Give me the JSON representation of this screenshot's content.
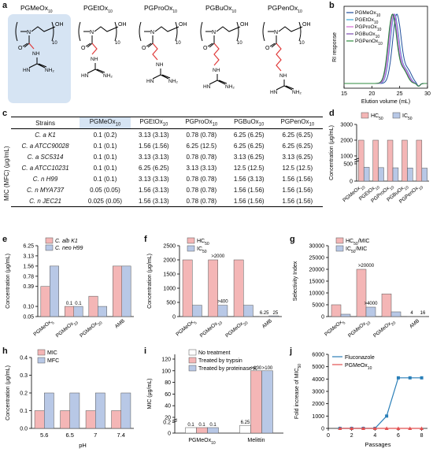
{
  "panel_letters": {
    "a": "a",
    "b": "b",
    "c": "c",
    "d": "d",
    "e": "e",
    "f": "f",
    "g": "g",
    "h": "h",
    "i": "i",
    "j": "j"
  },
  "molecules": {
    "names": [
      "PGMeOx",
      "PGEtOx",
      "PGProOx",
      "PGBuOx",
      "PGPenOx"
    ],
    "subscript": "10",
    "repeat": "10",
    "atoms": {
      "N": "N",
      "O": "O",
      "H": "H",
      "OH": "OH",
      "NH": "NH",
      "NH2": "NH₂",
      "HN": "HN"
    }
  },
  "table_c": {
    "side_label": "MIC (MFC) (μg/mL)",
    "header_first": "Strains",
    "header_prefixes": [
      "PGMeOx",
      "PGEtOx",
      "PGProOx",
      "PGBuOx",
      "PGPenOx"
    ],
    "header_sub": "10",
    "rows": [
      {
        "strain": "C. a K1",
        "values": [
          "0.1 (0.2)",
          "3.13 (3.13)",
          "0.78 (0.78)",
          "6.25 (6.25)",
          "6.25 (6.25)"
        ]
      },
      {
        "strain": "C. a ATCC90028",
        "values": [
          "0.1 (0.1)",
          "1.56 (1.56)",
          "6.25 (12.5)",
          "6.25 (6.25)",
          "6.25 (6.25)"
        ]
      },
      {
        "strain": "C. a SC5314",
        "values": [
          "0.1 (0.1)",
          "3.13 (3.13)",
          "0.78 (0.78)",
          "3.13 (6.25)",
          "3.13 (6.25)"
        ]
      },
      {
        "strain": "C. a ATCC10231",
        "values": [
          "0.1 (0.1)",
          "6.25 (6.25)",
          "3.13 (3.13)",
          "12.5 (12.5)",
          "12.5 (12.5)"
        ]
      },
      {
        "strain": "C. n H99",
        "values": [
          "0.1 (0.1)",
          "3.13 (3.13)",
          "0.78 (0.78)",
          "1.56 (3.13)",
          "1.56 (1.56)"
        ]
      },
      {
        "strain": "C. n MYA737",
        "values": [
          "0.05 (0.05)",
          "1.56 (3.13)",
          "0.78 (0.78)",
          "1.56 (1.56)",
          "1.56 (1.56)"
        ]
      },
      {
        "strain": "C. n JEC21",
        "values": [
          "0.025 (0.05)",
          "1.56 (3.13)",
          "0.78 (0.78)",
          "1.56 (1.56)",
          "1.56 (1.56)"
        ]
      }
    ]
  },
  "chart_data": [
    {
      "panel": "b",
      "type": "line",
      "xlabel": "Elution volume (mL)",
      "ylabel": "RI response",
      "xlim": [
        15,
        30
      ],
      "xticks": [
        "15",
        "20",
        "25",
        "30"
      ],
      "legend_prefixes": [
        "PGMeOx",
        "PGEtOx",
        "PGProOx",
        "PGBuOx",
        "PGPenOx"
      ],
      "legend_sub": "10",
      "legend_location": "upper-left",
      "colors": [
        "#1f4e9b",
        "#3aa6d8",
        "#d46ad4",
        "#7b4bb0",
        "#2e8b3e"
      ],
      "peak_x": [
        24.5,
        24.1,
        24.0,
        23.8,
        23.7
      ]
    },
    {
      "panel": "d",
      "type": "bar",
      "ylabel": "Concentration (μg/mL)",
      "yticks": [
        "0",
        "500",
        "1000",
        "2000",
        "3000"
      ],
      "categories_prefix": [
        "PGMeOx",
        "PGEtOx",
        "PGProOx",
        "PGBuOx",
        "PGPenOx"
      ],
      "categories_sub": "10",
      "series": [
        {
          "name": "HC",
          "name_sub": "50",
          "color": "#f4b6b6",
          "values": [
            2000,
            2000,
            2000,
            2000,
            2000
          ]
        },
        {
          "name": "IC",
          "name_sub": "50",
          "color": "#b8c8e6",
          "values": [
            400,
            390,
            385,
            380,
            375
          ]
        }
      ]
    },
    {
      "panel": "e",
      "type": "bar",
      "ylabel": "Concentration (μg/mL)",
      "yticks": [
        "0.05",
        "0.10",
        "0.39",
        "0.78",
        "1.56",
        "3.13",
        "6.25"
      ],
      "categories_prefix": [
        "PGMeOx",
        "PGMeOx",
        "PGMeOx",
        "AMB"
      ],
      "categories_sub": [
        "5",
        "10",
        "20",
        ""
      ],
      "series": [
        {
          "name": "C. alb K1",
          "color": "#f4b6b6",
          "values": [
            0.39,
            0.1,
            0.2,
            1.56
          ]
        },
        {
          "name": "C. neo H99",
          "color": "#b8c8e6",
          "values": [
            1.56,
            0.1,
            0.1,
            1.56
          ]
        }
      ],
      "data_labels": [
        "0.1",
        "0.1"
      ]
    },
    {
      "panel": "f",
      "type": "bar",
      "ylabel": "Concentration (μg/mL)",
      "yticks": [
        "0",
        "500",
        "1000",
        "1500",
        "2000",
        "2500"
      ],
      "categories_prefix": [
        "PGMeOx",
        "PGMeOx",
        "PGMeOx",
        "AMB"
      ],
      "categories_sub": [
        "5",
        "10",
        "20",
        ""
      ],
      "series": [
        {
          "name": "HC",
          "name_sub": "50",
          "color": "#f4b6b6",
          "values": [
            2000,
            2000,
            2000,
            6.25
          ]
        },
        {
          "name": "IC",
          "name_sub": "50",
          "color": "#b8c8e6",
          "values": [
            400,
            400,
            400,
            25
          ]
        }
      ],
      "data_labels": [
        ">2000",
        ">400",
        "6.25",
        "25"
      ]
    },
    {
      "panel": "g",
      "type": "bar",
      "ylabel": "Selectivity Index",
      "yticks": [
        "0",
        "5000",
        "10000",
        "15000",
        "20000",
        "25000",
        "30000"
      ],
      "categories_prefix": [
        "PGMeOx",
        "PGMeOx",
        "PGMeOx",
        "AMB"
      ],
      "categories_sub": [
        "5",
        "10",
        "20",
        ""
      ],
      "series": [
        {
          "name": "HC50/MIC",
          "color": "#f4b6b6",
          "values": [
            5000,
            20000,
            9600,
            4
          ]
        },
        {
          "name": "IC50/MIC",
          "color": "#b8c8e6",
          "values": [
            1000,
            4000,
            2000,
            16
          ]
        }
      ],
      "legend_labels": [
        "HC",
        "/MIC",
        "IC",
        "/MIC"
      ],
      "legend_sub": "50",
      "data_labels": [
        ">20000",
        ">4000",
        "4",
        "16"
      ]
    },
    {
      "panel": "h",
      "type": "bar",
      "xlabel": "pH",
      "ylabel": "Concentration (μg/mL)",
      "categories": [
        "5.6",
        "6.5",
        "7",
        "7.4"
      ],
      "yticks": [
        "0.0",
        "0.1",
        "0.2",
        "0.3",
        "0.4"
      ],
      "ylim": [
        0,
        0.4
      ],
      "series": [
        {
          "name": "MIC",
          "color": "#f4b6b6",
          "values": [
            0.1,
            0.1,
            0.1,
            0.1
          ]
        },
        {
          "name": "MFC",
          "color": "#b8c8e6",
          "values": [
            0.2,
            0.2,
            0.2,
            0.2
          ]
        }
      ]
    },
    {
      "panel": "i",
      "type": "bar",
      "ylabel": "MIC (μg/mL)",
      "yticks": [
        "0",
        "0.2",
        "20",
        "40",
        "60",
        "80",
        "100",
        "120"
      ],
      "categories": [
        "PGMeOx",
        "Melittin"
      ],
      "category_sub": [
        "10",
        ""
      ],
      "series": [
        {
          "name": "No treatment",
          "color": "#ffffff",
          "values": [
            0.1,
            6.25
          ]
        },
        {
          "name": "Treated by trypsin",
          "color": "#f4b6b6",
          "values": [
            0.1,
            100
          ]
        },
        {
          "name": "Treated by proteinase K",
          "color": "#b8c8e6",
          "values": [
            0.1,
            100
          ]
        }
      ],
      "data_labels": [
        "0.1",
        "0.1",
        "0.1",
        "6.25",
        ">100",
        ">100"
      ]
    },
    {
      "panel": "j",
      "type": "line",
      "xlabel": "Passages",
      "ylabel": "Fold increase of MIC",
      "ylabel_sub": "50",
      "xticks": [
        "0",
        "2",
        "4",
        "6",
        "8"
      ],
      "yticks": [
        "0",
        "1000",
        "2000",
        "3000",
        "4000",
        "5000",
        "6000"
      ],
      "xlim": [
        0,
        8.5
      ],
      "ylim": [
        0,
        6000
      ],
      "series": [
        {
          "name": "Fluconazole",
          "color": "#2a7fb8",
          "x": [
            1,
            2,
            3,
            4,
            5,
            6,
            7,
            8
          ],
          "y": [
            1,
            1,
            1,
            1,
            1000,
            4096,
            4096,
            4096
          ]
        },
        {
          "name": "PGMeOx",
          "name_sub": "10",
          "color": "#e25050",
          "x": [
            1,
            2,
            3,
            4,
            5,
            6,
            7,
            8
          ],
          "y": [
            1,
            1,
            1,
            1,
            1,
            1,
            1,
            1
          ]
        }
      ]
    }
  ]
}
